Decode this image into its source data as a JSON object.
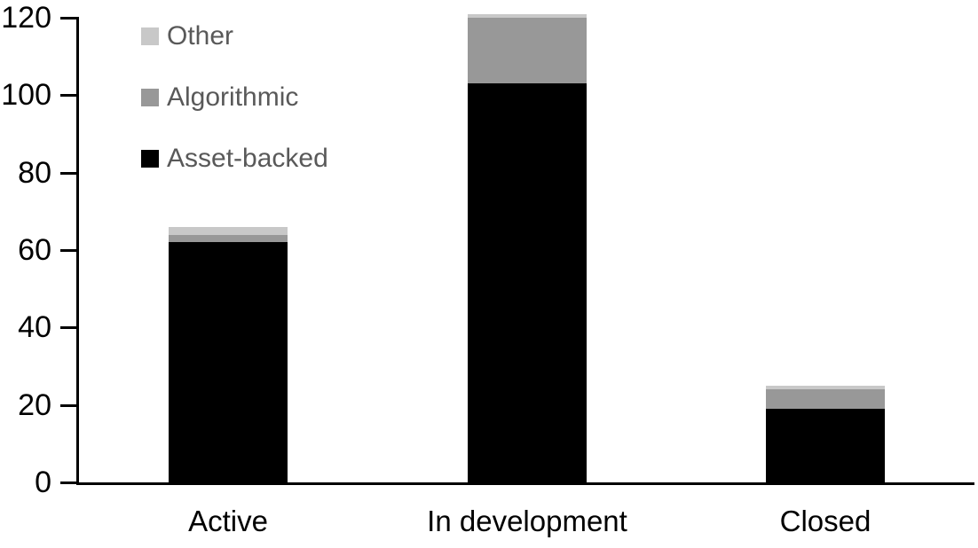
{
  "chart_data": {
    "type": "bar",
    "stacked": true,
    "title": "",
    "xlabel": "",
    "ylabel": "",
    "categories": [
      "Active",
      "In development",
      "Closed"
    ],
    "series": [
      {
        "name": "Asset-backed",
        "color": "#000000",
        "values": [
          62,
          103,
          19
        ]
      },
      {
        "name": "Algorithmic",
        "color": "#989898",
        "values": [
          2,
          17,
          5
        ]
      },
      {
        "name": "Other",
        "color": "#c8c8c8",
        "values": [
          2,
          1,
          1
        ]
      }
    ],
    "stack_totals": [
      66,
      121,
      25
    ],
    "ylim": [
      0,
      120
    ],
    "yticks": [
      0,
      20,
      40,
      60,
      80,
      100,
      120
    ],
    "grid": false,
    "legend_position": "top-left-inside",
    "legend_order": [
      "Other",
      "Algorithmic",
      "Asset-backed"
    ],
    "axis_color": "#000000",
    "legend_text_color": "#595959",
    "background_color": "#ffffff"
  }
}
